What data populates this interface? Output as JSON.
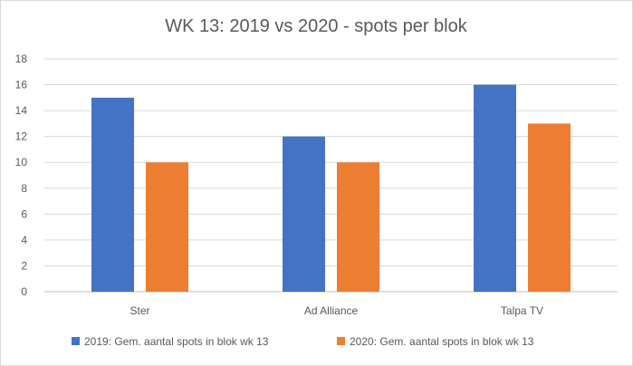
{
  "chart_data": {
    "type": "bar",
    "title": "WK 13: 2019 vs 2020 - spots per blok",
    "categories": [
      "Ster",
      "Ad Alliance",
      "Talpa TV"
    ],
    "series": [
      {
        "name": "2019: Gem. aantal spots in blok wk 13",
        "values": [
          15,
          12,
          16
        ],
        "color": "#4472c4"
      },
      {
        "name": "2020: Gem. aantal spots in blok wk 13",
        "values": [
          10,
          10,
          13
        ],
        "color": "#ed7d31"
      }
    ],
    "ylim": [
      0,
      18
    ],
    "yticks": [
      0,
      2,
      4,
      6,
      8,
      10,
      12,
      14,
      16,
      18
    ],
    "grid": true,
    "legend_position": "bottom",
    "xlabel": "",
    "ylabel": ""
  }
}
